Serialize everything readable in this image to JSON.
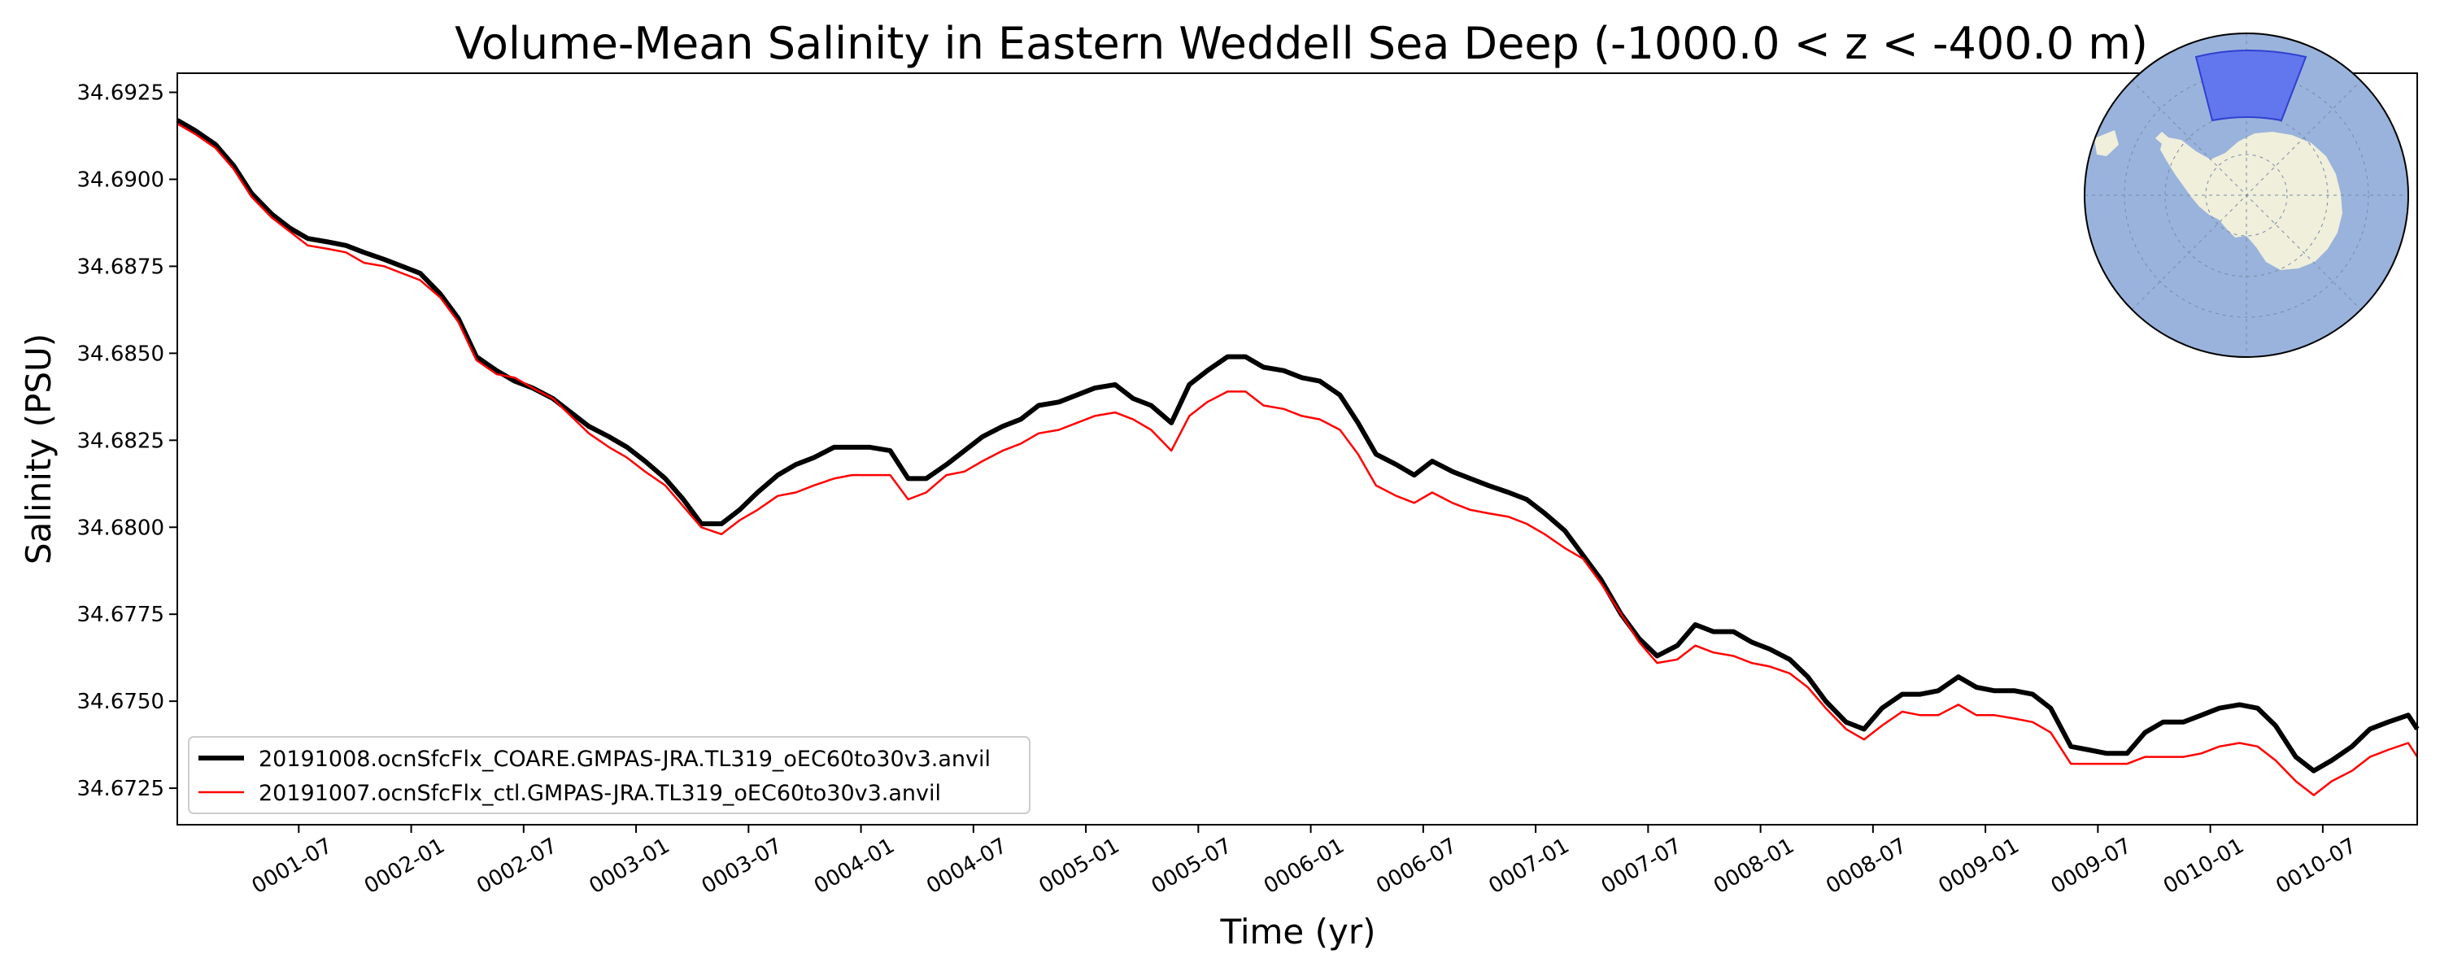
{
  "chart_data": {
    "type": "line",
    "title": "Volume-Mean Salinity in Eastern Weddell Sea Deep (-1000.0 < z < -400.0 m)",
    "xlabel": "Time (yr)",
    "ylabel": "Salinity (PSU)",
    "x_unit": "year",
    "xlim": [
      0.96,
      10.92
    ],
    "ylim": [
      34.67145,
      34.69305
    ],
    "yticks": [
      34.6725,
      34.675,
      34.6775,
      34.68,
      34.6825,
      34.685,
      34.6875,
      34.69,
      34.6925
    ],
    "ytick_labels": [
      "34.6725",
      "34.6750",
      "34.6775",
      "34.6800",
      "34.6825",
      "34.6850",
      "34.6875",
      "34.6900",
      "34.6925"
    ],
    "xticks": [
      1.5,
      2.0,
      2.5,
      3.0,
      3.5,
      4.0,
      4.5,
      5.0,
      5.5,
      6.0,
      6.5,
      7.0,
      7.5,
      8.0,
      8.5,
      9.0,
      9.5,
      10.0,
      10.5
    ],
    "xtick_labels": [
      "0001-07",
      "0002-01",
      "0002-07",
      "0003-01",
      "0003-07",
      "0004-01",
      "0004-07",
      "0005-01",
      "0005-07",
      "0006-01",
      "0006-07",
      "0007-01",
      "0007-07",
      "0008-01",
      "0008-07",
      "0009-01",
      "0009-07",
      "0010-01",
      "0010-07"
    ],
    "grid": false,
    "legend_position": "lower-left",
    "series": [
      {
        "name": "20191008.ocnSfcFlx_COARE.GMPAS-JRA.TL319_oEC60to30v3.anvil",
        "color": "#000000",
        "line_width": 6,
        "x": [
          0.96,
          1.04,
          1.13,
          1.21,
          1.29,
          1.38,
          1.46,
          1.54,
          1.63,
          1.71,
          1.79,
          1.88,
          1.96,
          2.04,
          2.13,
          2.21,
          2.29,
          2.38,
          2.46,
          2.54,
          2.63,
          2.71,
          2.79,
          2.88,
          2.96,
          3.04,
          3.13,
          3.21,
          3.29,
          3.38,
          3.46,
          3.54,
          3.63,
          3.71,
          3.79,
          3.88,
          3.96,
          4.04,
          4.13,
          4.21,
          4.29,
          4.38,
          4.46,
          4.54,
          4.63,
          4.71,
          4.79,
          4.88,
          4.96,
          5.04,
          5.13,
          5.21,
          5.29,
          5.38,
          5.46,
          5.54,
          5.63,
          5.71,
          5.79,
          5.88,
          5.96,
          6.04,
          6.13,
          6.21,
          6.29,
          6.38,
          6.46,
          6.54,
          6.63,
          6.71,
          6.79,
          6.88,
          6.96,
          7.04,
          7.13,
          7.21,
          7.29,
          7.38,
          7.46,
          7.54,
          7.63,
          7.71,
          7.79,
          7.88,
          7.96,
          8.04,
          8.13,
          8.21,
          8.29,
          8.38,
          8.46,
          8.54,
          8.63,
          8.71,
          8.79,
          8.88,
          8.96,
          9.04,
          9.13,
          9.21,
          9.29,
          9.38,
          9.46,
          9.54,
          9.63,
          9.71,
          9.79,
          9.88,
          9.96,
          10.04,
          10.13,
          10.21,
          10.29,
          10.38,
          10.46,
          10.54,
          10.63,
          10.71,
          10.79,
          10.88,
          10.92
        ],
        "y": [
          34.6917,
          34.6914,
          34.691,
          34.6904,
          34.6896,
          34.689,
          34.6886,
          34.6883,
          34.6882,
          34.6881,
          34.6879,
          34.6877,
          34.6875,
          34.6873,
          34.6867,
          34.686,
          34.6849,
          34.6845,
          34.6842,
          34.684,
          34.6837,
          34.6833,
          34.6829,
          34.6826,
          34.6823,
          34.6819,
          34.6814,
          34.6808,
          34.6801,
          34.6801,
          34.6805,
          34.681,
          34.6815,
          34.6818,
          34.682,
          34.6823,
          34.6823,
          34.6823,
          34.6822,
          34.6814,
          34.6814,
          34.6818,
          34.6822,
          34.6826,
          34.6829,
          34.6831,
          34.6835,
          34.6836,
          34.6838,
          34.684,
          34.6841,
          34.6837,
          34.6835,
          34.683,
          34.6841,
          34.6845,
          34.6849,
          34.6849,
          34.6846,
          34.6845,
          34.6843,
          34.6842,
          34.6838,
          34.683,
          34.6821,
          34.6818,
          34.6815,
          34.6819,
          34.6816,
          34.6814,
          34.6812,
          34.681,
          34.6808,
          34.6804,
          34.6799,
          34.6792,
          34.6785,
          34.6775,
          34.6768,
          34.6763,
          34.6766,
          34.6772,
          34.677,
          34.677,
          34.6767,
          34.6765,
          34.6762,
          34.6757,
          34.675,
          34.6744,
          34.6742,
          34.6748,
          34.6752,
          34.6752,
          34.6753,
          34.6757,
          34.6754,
          34.6753,
          34.6753,
          34.6752,
          34.6748,
          34.6737,
          34.6736,
          34.6735,
          34.6735,
          34.6741,
          34.6744,
          34.6744,
          34.6746,
          34.6748,
          34.6749,
          34.6748,
          34.6743,
          34.6734,
          34.673,
          34.6733,
          34.6737,
          34.6742,
          34.6744,
          34.6746,
          34.6742
        ]
      },
      {
        "name": "20191007.ocnSfcFlx_ctl.GMPAS-JRA.TL319_oEC60to30v3.anvil",
        "color": "#ff0000",
        "line_width": 2.5,
        "x": [
          0.96,
          1.04,
          1.13,
          1.21,
          1.29,
          1.38,
          1.46,
          1.54,
          1.63,
          1.71,
          1.79,
          1.88,
          1.96,
          2.04,
          2.13,
          2.21,
          2.29,
          2.38,
          2.46,
          2.54,
          2.63,
          2.71,
          2.79,
          2.88,
          2.96,
          3.04,
          3.13,
          3.21,
          3.29,
          3.38,
          3.46,
          3.54,
          3.63,
          3.71,
          3.79,
          3.88,
          3.96,
          4.04,
          4.13,
          4.21,
          4.29,
          4.38,
          4.46,
          4.54,
          4.63,
          4.71,
          4.79,
          4.88,
          4.96,
          5.04,
          5.13,
          5.21,
          5.29,
          5.38,
          5.46,
          5.54,
          5.63,
          5.71,
          5.79,
          5.88,
          5.96,
          6.04,
          6.13,
          6.21,
          6.29,
          6.38,
          6.46,
          6.54,
          6.63,
          6.71,
          6.79,
          6.88,
          6.96,
          7.04,
          7.13,
          7.21,
          7.29,
          7.38,
          7.46,
          7.54,
          7.63,
          7.71,
          7.79,
          7.88,
          7.96,
          8.04,
          8.13,
          8.21,
          8.29,
          8.38,
          8.46,
          8.54,
          8.63,
          8.71,
          8.79,
          8.88,
          8.96,
          9.04,
          9.13,
          9.21,
          9.29,
          9.38,
          9.46,
          9.54,
          9.63,
          9.71,
          9.79,
          9.88,
          9.96,
          10.04,
          10.13,
          10.21,
          10.29,
          10.38,
          10.46,
          10.54,
          10.63,
          10.71,
          10.79,
          10.88,
          10.92
        ],
        "y": [
          34.6916,
          34.6913,
          34.6909,
          34.6903,
          34.6895,
          34.6889,
          34.6885,
          34.6881,
          34.688,
          34.6879,
          34.6876,
          34.6875,
          34.6873,
          34.6871,
          34.6866,
          34.6859,
          34.6848,
          34.6844,
          34.6843,
          34.684,
          34.6837,
          34.6832,
          34.6827,
          34.6823,
          34.682,
          34.6816,
          34.6812,
          34.6806,
          34.68,
          34.6798,
          34.6802,
          34.6805,
          34.6809,
          34.681,
          34.6812,
          34.6814,
          34.6815,
          34.6815,
          34.6815,
          34.6808,
          34.681,
          34.6815,
          34.6816,
          34.6819,
          34.6822,
          34.6824,
          34.6827,
          34.6828,
          34.683,
          34.6832,
          34.6833,
          34.6831,
          34.6828,
          34.6822,
          34.6832,
          34.6836,
          34.6839,
          34.6839,
          34.6835,
          34.6834,
          34.6832,
          34.6831,
          34.6828,
          34.6821,
          34.6812,
          34.6809,
          34.6807,
          34.681,
          34.6807,
          34.6805,
          34.6804,
          34.6803,
          34.6801,
          34.6798,
          34.6794,
          34.6791,
          34.6784,
          34.6775,
          34.6767,
          34.6761,
          34.6762,
          34.6766,
          34.6764,
          34.6763,
          34.6761,
          34.676,
          34.6758,
          34.6754,
          34.6748,
          34.6742,
          34.6739,
          34.6743,
          34.6747,
          34.6746,
          34.6746,
          34.6749,
          34.6746,
          34.6746,
          34.6745,
          34.6744,
          34.6741,
          34.6732,
          34.6732,
          34.6732,
          34.6732,
          34.6734,
          34.6734,
          34.6734,
          34.6735,
          34.6737,
          34.6738,
          34.6737,
          34.6733,
          34.6727,
          34.6723,
          34.6727,
          34.673,
          34.6734,
          34.6736,
          34.6738,
          34.6734
        ]
      }
    ]
  },
  "inset_map": {
    "description_icon": "antarctica-polar-map-icon",
    "ocean_color": "#9ab3dc",
    "land_color": "#efefdb",
    "region_color": "#5c6ff0"
  }
}
